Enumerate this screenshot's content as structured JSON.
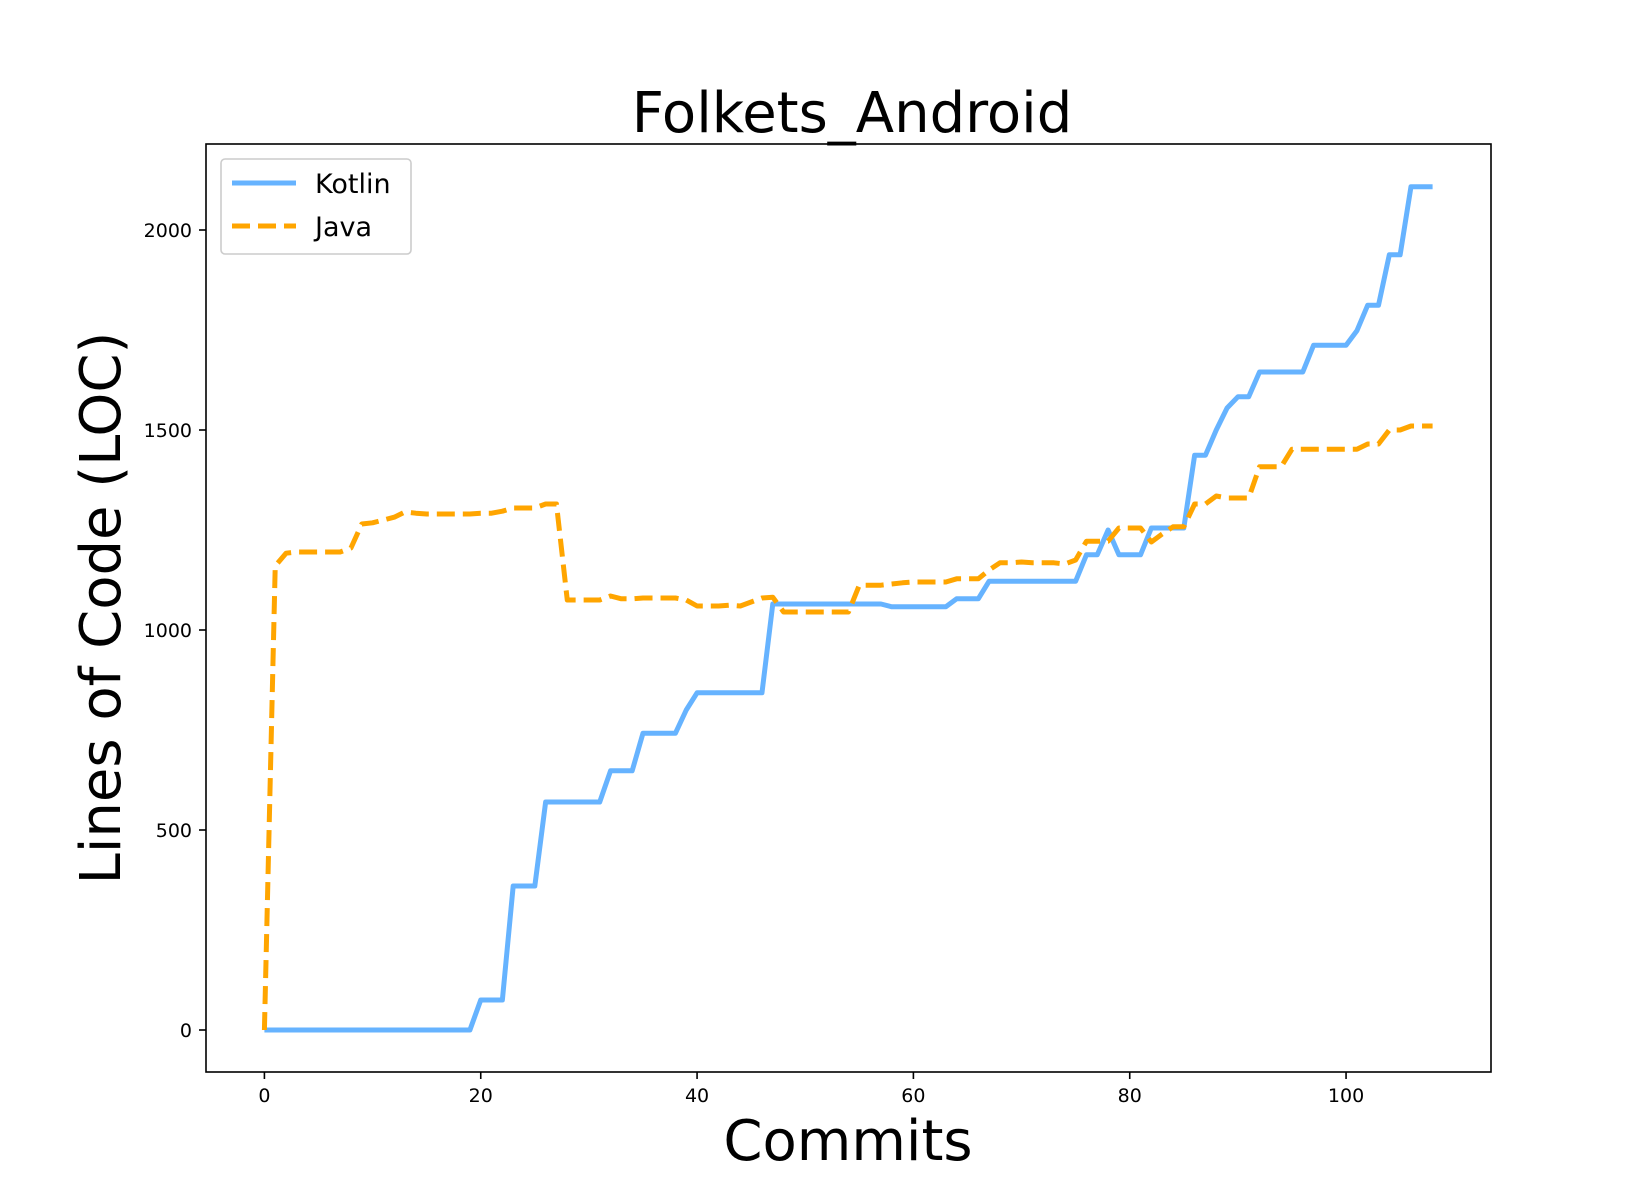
{
  "chart_data": {
    "type": "line",
    "title": "Folkets_Android",
    "xlabel": "Commits",
    "ylabel": "Lines of Code (LOC)",
    "xlim": [
      -5.4,
      113.4
    ],
    "ylim": [
      -105,
      2215
    ],
    "xticks": [
      0,
      20,
      40,
      60,
      80,
      100
    ],
    "yticks": [
      0,
      500,
      1000,
      1500,
      2000
    ],
    "grid": false,
    "legend_position": "top-left",
    "series": [
      {
        "name": "Kotlin",
        "color": "#66b3ff",
        "style": "solid",
        "x": [
          0,
          1,
          2,
          3,
          4,
          5,
          6,
          7,
          8,
          9,
          10,
          11,
          12,
          13,
          14,
          15,
          16,
          17,
          18,
          19,
          20,
          21,
          22,
          23,
          24,
          25,
          26,
          27,
          28,
          29,
          30,
          31,
          32,
          33,
          34,
          35,
          36,
          37,
          38,
          39,
          40,
          41,
          42,
          43,
          44,
          45,
          46,
          47,
          48,
          49,
          50,
          51,
          52,
          53,
          54,
          55,
          56,
          57,
          58,
          59,
          60,
          61,
          62,
          63,
          64,
          65,
          66,
          67,
          68,
          69,
          70,
          71,
          72,
          73,
          74,
          75,
          76,
          77,
          78,
          79,
          80,
          81,
          82,
          83,
          84,
          85,
          86,
          87,
          88,
          89,
          90,
          91,
          92,
          93,
          94,
          95,
          96,
          97,
          98,
          99,
          100,
          101,
          102,
          103,
          104,
          105,
          106,
          107,
          108
        ],
        "values": [
          0,
          0,
          0,
          0,
          0,
          0,
          0,
          0,
          0,
          0,
          0,
          0,
          0,
          0,
          0,
          0,
          0,
          0,
          0,
          0,
          75,
          75,
          75,
          360,
          360,
          360,
          570,
          570,
          570,
          570,
          570,
          570,
          648,
          648,
          648,
          742,
          742,
          742,
          742,
          800,
          843,
          843,
          843,
          843,
          843,
          843,
          843,
          1065,
          1065,
          1065,
          1065,
          1065,
          1065,
          1065,
          1065,
          1065,
          1065,
          1065,
          1058,
          1058,
          1058,
          1058,
          1058,
          1058,
          1078,
          1078,
          1078,
          1122,
          1122,
          1122,
          1122,
          1122,
          1122,
          1122,
          1122,
          1122,
          1188,
          1188,
          1250,
          1188,
          1188,
          1188,
          1255,
          1255,
          1255,
          1255,
          1437,
          1437,
          1500,
          1555,
          1583,
          1583,
          1645,
          1645,
          1645,
          1645,
          1645,
          1712,
          1712,
          1712,
          1712,
          1748,
          1812,
          1812,
          1938,
          1938,
          2108,
          2108,
          2108
        ]
      },
      {
        "name": "Java",
        "color": "#ffa500",
        "style": "dashed",
        "x": [
          0,
          1,
          2,
          3,
          4,
          5,
          6,
          7,
          8,
          9,
          10,
          11,
          12,
          13,
          14,
          15,
          16,
          17,
          18,
          19,
          20,
          21,
          22,
          23,
          24,
          25,
          26,
          27,
          28,
          29,
          30,
          31,
          32,
          33,
          34,
          35,
          36,
          37,
          38,
          39,
          40,
          41,
          42,
          43,
          44,
          45,
          46,
          47,
          48,
          49,
          50,
          51,
          52,
          53,
          54,
          55,
          56,
          57,
          58,
          59,
          60,
          61,
          62,
          63,
          64,
          65,
          66,
          67,
          68,
          69,
          70,
          71,
          72,
          73,
          74,
          75,
          76,
          77,
          78,
          79,
          80,
          81,
          82,
          83,
          84,
          85,
          86,
          87,
          88,
          89,
          90,
          91,
          92,
          93,
          94,
          95,
          96,
          97,
          98,
          99,
          100,
          101,
          102,
          103,
          104,
          105,
          106,
          107,
          108
        ],
        "values": [
          0,
          1160,
          1192,
          1195,
          1195,
          1195,
          1195,
          1195,
          1205,
          1265,
          1268,
          1275,
          1282,
          1295,
          1292,
          1290,
          1290,
          1290,
          1290,
          1290,
          1292,
          1292,
          1297,
          1305,
          1305,
          1305,
          1315,
          1315,
          1075,
          1075,
          1075,
          1075,
          1085,
          1078,
          1078,
          1080,
          1080,
          1080,
          1080,
          1075,
          1060,
          1060,
          1060,
          1062,
          1060,
          1070,
          1080,
          1082,
          1045,
          1045,
          1045,
          1045,
          1045,
          1045,
          1045,
          1112,
          1112,
          1112,
          1115,
          1118,
          1120,
          1120,
          1120,
          1120,
          1128,
          1128,
          1128,
          1150,
          1168,
          1168,
          1170,
          1168,
          1168,
          1168,
          1165,
          1175,
          1222,
          1222,
          1222,
          1255,
          1255,
          1255,
          1220,
          1240,
          1258,
          1258,
          1315,
          1315,
          1335,
          1330,
          1330,
          1330,
          1408,
          1408,
          1408,
          1452,
          1452,
          1452,
          1452,
          1452,
          1452,
          1452,
          1465,
          1465,
          1500,
          1500,
          1510,
          1510,
          1510
        ]
      }
    ]
  }
}
